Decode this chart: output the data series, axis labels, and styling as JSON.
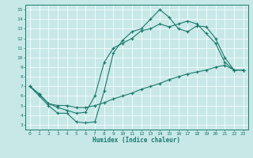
{
  "xlabel": "Humidex (Indice chaleur)",
  "bg_color": "#c8e8e8",
  "line_color": "#1a7a6a",
  "xlim": [
    -0.5,
    23.5
  ],
  "ylim": [
    2.5,
    15.5
  ],
  "xticks": [
    0,
    1,
    2,
    3,
    4,
    5,
    6,
    7,
    8,
    9,
    10,
    11,
    12,
    13,
    14,
    15,
    16,
    17,
    18,
    19,
    20,
    21,
    22,
    23
  ],
  "yticks": [
    3,
    4,
    5,
    6,
    7,
    8,
    9,
    10,
    11,
    12,
    13,
    14,
    15
  ],
  "line1_x": [
    0,
    1,
    2,
    3,
    4,
    5,
    6,
    7,
    8,
    9,
    10,
    11,
    12,
    13,
    14,
    15,
    16,
    17,
    18,
    19,
    20,
    21,
    22,
    23
  ],
  "line1_y": [
    7.0,
    6.0,
    5.0,
    4.2,
    4.2,
    3.3,
    3.2,
    3.3,
    6.5,
    10.5,
    11.8,
    12.7,
    13.0,
    14.0,
    15.0,
    14.2,
    13.0,
    12.7,
    13.3,
    13.2,
    12.0,
    10.0,
    8.7,
    8.7
  ],
  "line2_x": [
    0,
    1,
    2,
    3,
    4,
    5,
    6,
    7,
    8,
    9,
    10,
    11,
    12,
    13,
    14,
    15,
    16,
    17,
    18,
    19,
    20,
    21,
    22,
    23
  ],
  "line2_y": [
    7.0,
    6.2,
    5.2,
    4.8,
    4.5,
    4.2,
    4.3,
    6.0,
    9.5,
    11.0,
    11.5,
    12.0,
    12.8,
    13.0,
    13.5,
    13.2,
    13.5,
    13.8,
    13.5,
    12.5,
    11.5,
    9.5,
    8.7,
    8.7
  ],
  "line3_x": [
    0,
    1,
    2,
    3,
    4,
    5,
    6,
    7,
    8,
    9,
    10,
    11,
    12,
    13,
    14,
    15,
    16,
    17,
    18,
    19,
    20,
    21,
    22,
    23
  ],
  "line3_y": [
    7.0,
    6.2,
    5.2,
    5.0,
    5.0,
    4.8,
    4.8,
    5.0,
    5.3,
    5.7,
    6.0,
    6.3,
    6.7,
    7.0,
    7.3,
    7.7,
    8.0,
    8.3,
    8.5,
    8.7,
    9.0,
    9.2,
    8.7,
    8.7
  ]
}
